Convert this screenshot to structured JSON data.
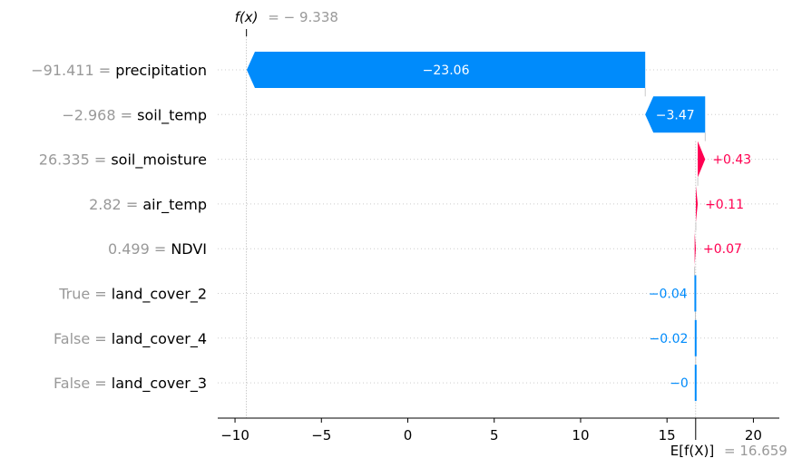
{
  "chart_data": {
    "type": "waterfall",
    "title": "",
    "xlabel": "",
    "ylabel": "",
    "xlim": [
      -11,
      21.5
    ],
    "xticks": [
      -10,
      -5,
      0,
      5,
      10,
      15,
      20
    ],
    "xtick_labels": [
      "−10",
      "−5",
      "0",
      "5",
      "10",
      "15",
      "20"
    ],
    "grid": "horizontal dotted rows",
    "fx": {
      "label": "f(x)",
      "value_text": "= − 9.338",
      "value": -9.338
    },
    "base": {
      "label": "E[f(X)]",
      "value_text": "= 16.659",
      "value": 16.659
    },
    "features": [
      {
        "name": "precipitation",
        "value": "−91.411",
        "contribution": -23.06,
        "label": "−23.06"
      },
      {
        "name": "soil_temp",
        "value": "−2.968",
        "contribution": -3.47,
        "label": "−3.47"
      },
      {
        "name": "soil_moisture",
        "value": "26.335",
        "contribution": 0.43,
        "label": "+0.43"
      },
      {
        "name": "air_temp",
        "value": "2.82",
        "contribution": 0.11,
        "label": "+0.11"
      },
      {
        "name": "NDVI",
        "value": "0.499",
        "contribution": 0.07,
        "label": "+0.07"
      },
      {
        "name": "land_cover_2",
        "value": "True",
        "contribution": -0.04,
        "label": "−0.04"
      },
      {
        "name": "land_cover_4",
        "value": "False",
        "contribution": -0.02,
        "label": "−0.02"
      },
      {
        "name": "land_cover_3",
        "value": "False",
        "contribution": 0.0,
        "label": "−0"
      }
    ],
    "colors": {
      "positive": "#ff0051",
      "negative": "#008bfb",
      "text_grey": "#999999",
      "bar_text": "#ffffff"
    }
  }
}
